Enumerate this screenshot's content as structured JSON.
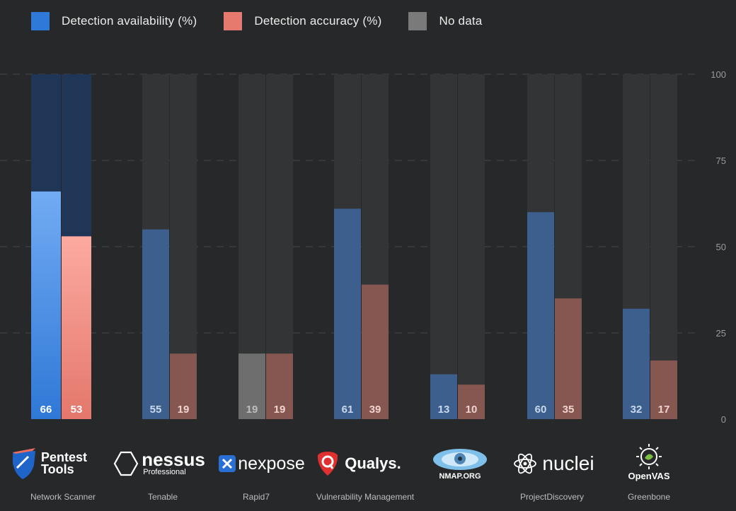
{
  "legend": {
    "availability": {
      "label": "Detection availability (%)",
      "color": "#2f7ad8"
    },
    "accuracy": {
      "label": "Detection accuracy (%)",
      "color": "#e77a6e"
    },
    "nodata": {
      "label": "No data",
      "color": "#7a7a7a"
    }
  },
  "vendors": [
    {
      "logo": "Pentest Tools",
      "name": "Network Scanner"
    },
    {
      "logo": "nessus",
      "logo_sub": "Professional",
      "name": "Tenable"
    },
    {
      "logo": "nexpose",
      "name": "Rapid7"
    },
    {
      "logo": "Qualys.",
      "name": "Vulnerability Management"
    },
    {
      "logo": "NMAP.ORG",
      "name": ""
    },
    {
      "logo": "nuclei",
      "name": "ProjectDiscovery"
    },
    {
      "logo": "OpenVAS",
      "name": "Greenbone"
    }
  ],
  "chart_data": {
    "type": "bar",
    "categories": [
      "Network Scanner",
      "Tenable",
      "Rapid7",
      "Vulnerability Management",
      "NMAP.ORG",
      "ProjectDiscovery",
      "Greenbone"
    ],
    "series": [
      {
        "name": "Detection availability (%)",
        "values": [
          66,
          55,
          19,
          61,
          13,
          60,
          32
        ],
        "nodata": [
          false,
          false,
          true,
          false,
          false,
          false,
          false
        ]
      },
      {
        "name": "Detection accuracy (%)",
        "values": [
          53,
          19,
          19,
          39,
          10,
          35,
          17
        ]
      }
    ],
    "ylim": [
      0,
      100
    ],
    "yticks": [
      0,
      25,
      50,
      75,
      100
    ],
    "grid": true,
    "gridlines": [
      25,
      50,
      75,
      100
    ],
    "highlight_index": 0,
    "colors": {
      "availability": "#3d5f8e",
      "accuracy": "#865650",
      "nodata": "#6e6e6e",
      "background_bar": "#323436",
      "highlight_background": "#1f3656",
      "highlight_availability_top": "#72abf3",
      "highlight_availability_bottom": "#2f78d6",
      "highlight_accuracy_top": "#fcaaa0",
      "highlight_accuracy_bottom": "#e4776b"
    },
    "legend_position": "top-left",
    "axis_position": "right"
  }
}
